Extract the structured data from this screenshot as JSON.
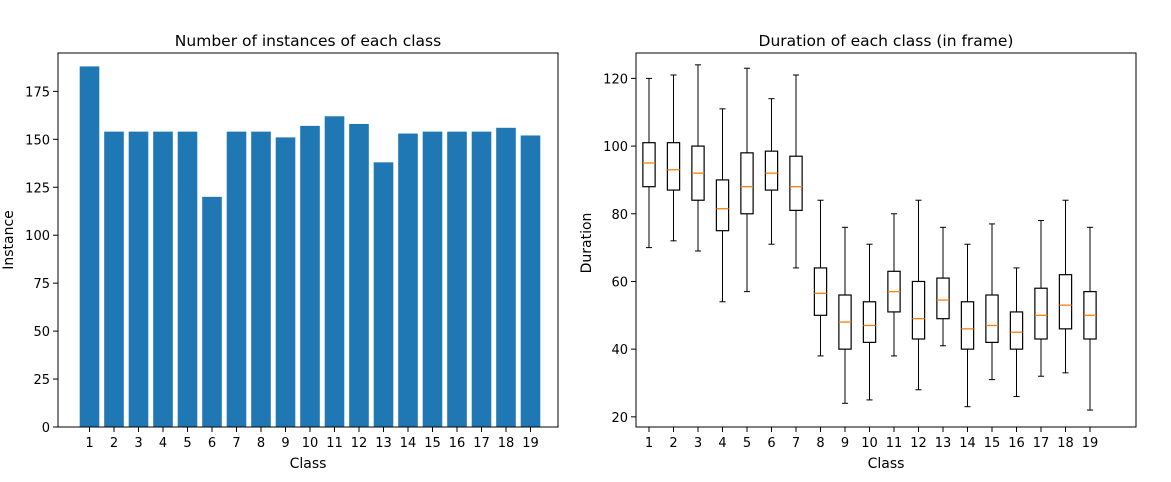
{
  "chart_data": [
    {
      "type": "bar",
      "title": "Number of instances of each class",
      "xlabel": "Class",
      "ylabel": "Instance",
      "categories": [
        "1",
        "2",
        "3",
        "4",
        "5",
        "6",
        "7",
        "8",
        "9",
        "10",
        "11",
        "12",
        "13",
        "14",
        "15",
        "16",
        "17",
        "18",
        "19"
      ],
      "values": [
        188,
        154,
        154,
        154,
        154,
        120,
        154,
        154,
        151,
        157,
        162,
        158,
        138,
        153,
        154,
        154,
        154,
        156,
        152
      ],
      "ylim": [
        0,
        195
      ],
      "yticks": [
        "0",
        "25",
        "50",
        "75",
        "100",
        "125",
        "150",
        "175"
      ],
      "bar_color": "#1f77b4",
      "grid": false
    },
    {
      "type": "boxplot",
      "title": "Duration of each class (in frame)",
      "xlabel": "Class",
      "ylabel": "Duration",
      "categories": [
        "1",
        "2",
        "3",
        "4",
        "5",
        "6",
        "7",
        "8",
        "9",
        "10",
        "11",
        "12",
        "13",
        "14",
        "15",
        "16",
        "17",
        "18",
        "19"
      ],
      "boxes": [
        {
          "whislo": 70,
          "q1": 88,
          "med": 95,
          "q3": 101,
          "whishi": 120
        },
        {
          "whislo": 72,
          "q1": 87,
          "med": 93,
          "q3": 101,
          "whishi": 121
        },
        {
          "whislo": 69,
          "q1": 84,
          "med": 92,
          "q3": 100,
          "whishi": 124
        },
        {
          "whislo": 54,
          "q1": 75,
          "med": 81.5,
          "q3": 90,
          "whishi": 111
        },
        {
          "whislo": 57,
          "q1": 80,
          "med": 88,
          "q3": 98,
          "whishi": 123
        },
        {
          "whislo": 71,
          "q1": 87,
          "med": 92,
          "q3": 98.5,
          "whishi": 114
        },
        {
          "whislo": 64,
          "q1": 81,
          "med": 88,
          "q3": 97,
          "whishi": 121
        },
        {
          "whislo": 38,
          "q1": 50,
          "med": 56.5,
          "q3": 64,
          "whishi": 84
        },
        {
          "whislo": 24,
          "q1": 40,
          "med": 48,
          "q3": 56,
          "whishi": 76
        },
        {
          "whislo": 25,
          "q1": 42,
          "med": 47,
          "q3": 54,
          "whishi": 71
        },
        {
          "whislo": 38,
          "q1": 51,
          "med": 57,
          "q3": 63,
          "whishi": 80
        },
        {
          "whislo": 28,
          "q1": 43,
          "med": 49,
          "q3": 60,
          "whishi": 84
        },
        {
          "whislo": 41,
          "q1": 49,
          "med": 54.5,
          "q3": 61,
          "whishi": 76
        },
        {
          "whislo": 23,
          "q1": 40,
          "med": 46,
          "q3": 54,
          "whishi": 71
        },
        {
          "whislo": 31,
          "q1": 42,
          "med": 47,
          "q3": 56,
          "whishi": 77
        },
        {
          "whislo": 26,
          "q1": 40,
          "med": 45,
          "q3": 51,
          "whishi": 64
        },
        {
          "whislo": 32,
          "q1": 43,
          "med": 50,
          "q3": 58,
          "whishi": 78
        },
        {
          "whislo": 33,
          "q1": 46,
          "med": 53,
          "q3": 62,
          "whishi": 84
        },
        {
          "whislo": 22,
          "q1": 43,
          "med": 50,
          "q3": 57,
          "whishi": 76
        }
      ],
      "ylim": [
        17,
        127.5
      ],
      "yticks": [
        "20",
        "40",
        "60",
        "80",
        "100",
        "120"
      ],
      "box_color": "#000000",
      "median_color": "#ff7f0e",
      "grid": false
    }
  ]
}
